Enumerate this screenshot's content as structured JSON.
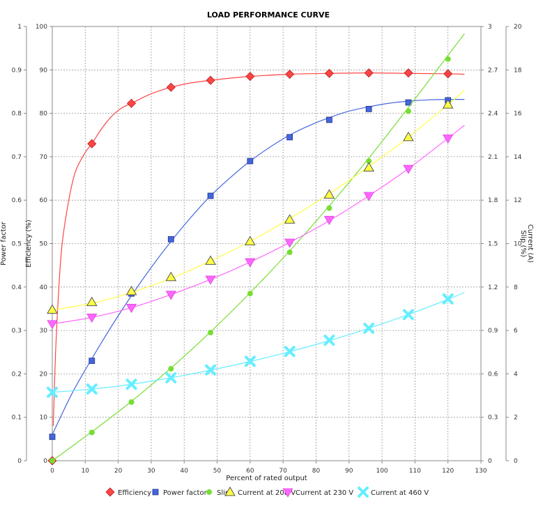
{
  "chart_data": {
    "type": "line",
    "title": "LOAD PERFORMANCE CURVE",
    "xlabel": "Percent of rated output",
    "xlim": [
      0,
      130
    ],
    "xticks": [
      0,
      10,
      20,
      30,
      40,
      50,
      60,
      70,
      80,
      90,
      100,
      110,
      120,
      130
    ],
    "grid": true,
    "legend_position": "bottom",
    "axes": {
      "power_factor": {
        "label": "Power factor",
        "side": "left-outer",
        "range": [
          0,
          1
        ],
        "ticks": [
          "0",
          "0.1",
          "0.2",
          "0.3",
          "0.4",
          "0.5",
          "0.6",
          "0.7",
          "0.8",
          "0.9",
          "1"
        ]
      },
      "efficiency": {
        "label": "Efficiency (%)",
        "side": "left-inner",
        "range": [
          0,
          100
        ],
        "ticks": [
          "0",
          "10",
          "20",
          "30",
          "40",
          "50",
          "60",
          "70",
          "80",
          "90",
          "100"
        ]
      },
      "slip": {
        "label": "Slip (%)",
        "side": "right-inner",
        "range": [
          0,
          3
        ],
        "ticks": [
          "0",
          "0.3",
          "0.6",
          "0.9",
          "1.2",
          "1.5",
          "1.8",
          "2.1",
          "2.4",
          "2.7",
          "3"
        ]
      },
      "current": {
        "label": "Current (A)",
        "side": "right-outer",
        "range": [
          0,
          20
        ],
        "ticks": [
          "0",
          "2",
          "4",
          "6",
          "8",
          "10",
          "12",
          "14",
          "16",
          "18",
          "20"
        ]
      }
    },
    "series": [
      {
        "name": "Efficiency",
        "axis": "efficiency",
        "color": "#ff4444",
        "marker": "diamond",
        "points": [
          [
            0,
            0
          ],
          [
            12,
            73
          ],
          [
            24,
            82.3
          ],
          [
            36,
            86
          ],
          [
            48,
            87.6
          ],
          [
            60,
            88.5
          ],
          [
            72,
            89
          ],
          [
            84,
            89.2
          ],
          [
            96,
            89.3
          ],
          [
            108,
            89.3
          ],
          [
            120,
            89.1
          ]
        ],
        "curve": [
          [
            0.3,
            8
          ],
          [
            1,
            25
          ],
          [
            2,
            40
          ],
          [
            3,
            50
          ],
          [
            5,
            60
          ],
          [
            7,
            66.5
          ],
          [
            10,
            71
          ],
          [
            12,
            73
          ],
          [
            15,
            76.5
          ],
          [
            18,
            79.3
          ],
          [
            21,
            81.2
          ],
          [
            24,
            82.3
          ],
          [
            30,
            84.5
          ],
          [
            36,
            86
          ],
          [
            42,
            87
          ],
          [
            48,
            87.6
          ],
          [
            54,
            88.1
          ],
          [
            60,
            88.5
          ],
          [
            72,
            89
          ],
          [
            84,
            89.2
          ],
          [
            96,
            89.3
          ],
          [
            108,
            89.2
          ],
          [
            120,
            89.1
          ],
          [
            125,
            89
          ]
        ]
      },
      {
        "name": "Power factor",
        "axis": "power_factor",
        "color": "#4466dd",
        "marker": "square",
        "points": [
          [
            0,
            0.055
          ],
          [
            12,
            0.23
          ],
          [
            24,
            0.385
          ],
          [
            36,
            0.51
          ],
          [
            48,
            0.61
          ],
          [
            60,
            0.69
          ],
          [
            72,
            0.745
          ],
          [
            84,
            0.785
          ],
          [
            96,
            0.81
          ],
          [
            108,
            0.825
          ],
          [
            120,
            0.83
          ]
        ],
        "curve": [
          [
            0,
            0.06
          ],
          [
            6,
            0.155
          ],
          [
            12,
            0.235
          ],
          [
            18,
            0.31
          ],
          [
            24,
            0.38
          ],
          [
            30,
            0.445
          ],
          [
            36,
            0.505
          ],
          [
            42,
            0.56
          ],
          [
            48,
            0.61
          ],
          [
            54,
            0.652
          ],
          [
            60,
            0.69
          ],
          [
            66,
            0.722
          ],
          [
            72,
            0.75
          ],
          [
            78,
            0.772
          ],
          [
            84,
            0.79
          ],
          [
            90,
            0.805
          ],
          [
            96,
            0.815
          ],
          [
            102,
            0.823
          ],
          [
            108,
            0.828
          ],
          [
            114,
            0.831
          ],
          [
            120,
            0.832
          ],
          [
            125,
            0.832
          ]
        ]
      },
      {
        "name": "Slip",
        "axis": "slip",
        "color": "#77dd33",
        "marker": "circle",
        "points": [
          [
            0,
            0
          ],
          [
            12,
            0.195
          ],
          [
            24,
            0.405
          ],
          [
            36,
            0.635
          ],
          [
            48,
            0.885
          ],
          [
            60,
            1.155
          ],
          [
            72,
            1.44
          ],
          [
            84,
            1.745
          ],
          [
            96,
            2.07
          ],
          [
            108,
            2.415
          ],
          [
            120,
            2.775
          ]
        ],
        "curve": [
          [
            0,
            0
          ],
          [
            12,
            0.2
          ],
          [
            24,
            0.41
          ],
          [
            36,
            0.64
          ],
          [
            48,
            0.89
          ],
          [
            60,
            1.16
          ],
          [
            72,
            1.45
          ],
          [
            84,
            1.76
          ],
          [
            96,
            2.09
          ],
          [
            108,
            2.44
          ],
          [
            120,
            2.8
          ],
          [
            125,
            2.95
          ]
        ]
      },
      {
        "name": "Current at 208 V",
        "axis": "current",
        "color": "#ffff44",
        "marker": "triangle-up",
        "points": [
          [
            0,
            6.95
          ],
          [
            12,
            7.3
          ],
          [
            24,
            7.8
          ],
          [
            36,
            8.45
          ],
          [
            48,
            9.2
          ],
          [
            60,
            10.1
          ],
          [
            72,
            11.1
          ],
          [
            84,
            12.25
          ],
          [
            96,
            13.5
          ],
          [
            108,
            14.9
          ],
          [
            120,
            16.4
          ]
        ],
        "curve": [
          [
            0,
            6.95
          ],
          [
            12,
            7.25
          ],
          [
            24,
            7.75
          ],
          [
            36,
            8.4
          ],
          [
            48,
            9.2
          ],
          [
            60,
            10.1
          ],
          [
            72,
            11.15
          ],
          [
            84,
            12.3
          ],
          [
            96,
            13.55
          ],
          [
            108,
            14.9
          ],
          [
            120,
            16.4
          ],
          [
            125,
            17.05
          ]
        ]
      },
      {
        "name": "Current at 230 V",
        "axis": "current",
        "color": "#ff66ff",
        "marker": "triangle-down",
        "points": [
          [
            0,
            6.3
          ],
          [
            12,
            6.6
          ],
          [
            24,
            7.05
          ],
          [
            36,
            7.65
          ],
          [
            48,
            8.35
          ],
          [
            60,
            9.15
          ],
          [
            72,
            10.05
          ],
          [
            84,
            11.1
          ],
          [
            96,
            12.2
          ],
          [
            108,
            13.45
          ],
          [
            120,
            14.85
          ]
        ],
        "curve": [
          [
            0,
            6.3
          ],
          [
            12,
            6.6
          ],
          [
            24,
            7.05
          ],
          [
            36,
            7.65
          ],
          [
            48,
            8.35
          ],
          [
            60,
            9.15
          ],
          [
            72,
            10.05
          ],
          [
            84,
            11.05
          ],
          [
            96,
            12.2
          ],
          [
            108,
            13.45
          ],
          [
            120,
            14.85
          ],
          [
            125,
            15.45
          ]
        ]
      },
      {
        "name": "Current at 460 V",
        "axis": "current",
        "color": "#66eeff",
        "marker": "x",
        "points": [
          [
            0,
            3.15
          ],
          [
            12,
            3.3
          ],
          [
            24,
            3.52
          ],
          [
            36,
            3.82
          ],
          [
            48,
            4.18
          ],
          [
            60,
            4.58
          ],
          [
            72,
            5.03
          ],
          [
            84,
            5.55
          ],
          [
            96,
            6.1
          ],
          [
            108,
            6.73
          ],
          [
            120,
            7.45
          ]
        ],
        "curve": [
          [
            0,
            3.15
          ],
          [
            12,
            3.3
          ],
          [
            24,
            3.52
          ],
          [
            36,
            3.82
          ],
          [
            48,
            4.17
          ],
          [
            60,
            4.57
          ],
          [
            72,
            5.02
          ],
          [
            84,
            5.53
          ],
          [
            96,
            6.1
          ],
          [
            108,
            6.73
          ],
          [
            120,
            7.43
          ],
          [
            125,
            7.75
          ]
        ]
      }
    ]
  }
}
